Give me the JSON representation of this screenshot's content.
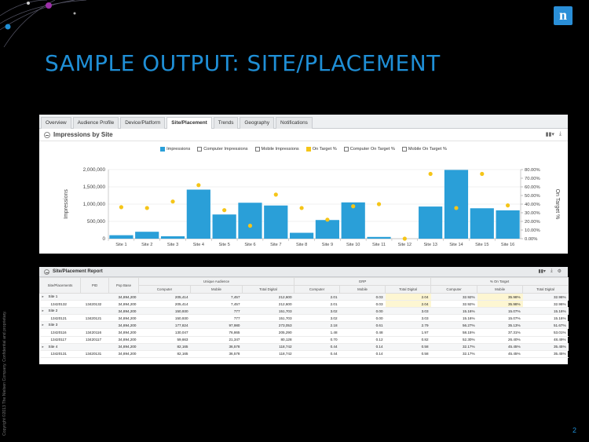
{
  "slide": {
    "title": "SAMPLE OUTPUT: SITE/PLACEMENT",
    "logo_letter": "n",
    "copyright": "Copyright ©2013 The Nielsen Company. Confidential and proprietary.",
    "page_number": "2",
    "colors": {
      "title": "#1f8fd6",
      "bar": "#2a9fd8",
      "dot": "#f5c518",
      "background": "#000000"
    }
  },
  "tabs": [
    {
      "label": "Overview",
      "active": false
    },
    {
      "label": "Audience Profile",
      "active": false
    },
    {
      "label": "Device/Platform",
      "active": false
    },
    {
      "label": "Site/Placement",
      "active": true
    },
    {
      "label": "Trends",
      "active": false
    },
    {
      "label": "Geography",
      "active": false
    },
    {
      "label": "Notifications",
      "active": false
    }
  ],
  "chart_panel": {
    "title": "Impressions by Site",
    "icons": [
      "bar-chart-icon",
      "download-icon"
    ]
  },
  "chart_data": {
    "type": "bar",
    "legend": [
      {
        "label": "Impressions",
        "kind": "filled",
        "color": "#2a9fd8"
      },
      {
        "label": "Computer Impressions",
        "kind": "outline"
      },
      {
        "label": "Mobile Impressions",
        "kind": "outline"
      },
      {
        "label": "On Target %",
        "kind": "filled",
        "color": "#f5c518"
      },
      {
        "label": "Computer On Target %",
        "kind": "outline"
      },
      {
        "label": "Mobile On Target %",
        "kind": "outline"
      }
    ],
    "categories": [
      "Site 1",
      "Site 2",
      "Site 3",
      "Site 4",
      "Site 5",
      "Site 6",
      "Site 7",
      "Site 8",
      "Site 9",
      "Site 10",
      "Site 11",
      "Site 12",
      "Site 13",
      "Site 14",
      "Site 15",
      "Site 16"
    ],
    "series": [
      {
        "name": "Impressions",
        "type": "bar",
        "axis": "left",
        "values": [
          100000,
          200000,
          70000,
          1420000,
          700000,
          1040000,
          960000,
          170000,
          540000,
          1050000,
          50000,
          0,
          930000,
          1990000,
          880000,
          820000
        ]
      },
      {
        "name": "On Target %",
        "type": "scatter",
        "axis": "right",
        "values": [
          36.5,
          35.5,
          43,
          62,
          33,
          15,
          51,
          35.5,
          22,
          37.5,
          40,
          0,
          75,
          35.5,
          75,
          38.5
        ]
      }
    ],
    "ylabel": "Impressions",
    "ylabel_right": "On Target %",
    "ylim": [
      0,
      2000000
    ],
    "ylim_right": [
      0,
      80
    ],
    "yticks": [
      "0",
      "500,000",
      "1,000,000",
      "1,500,000",
      "2,000,000"
    ],
    "yticks_right": [
      "0.00%",
      "10.00%",
      "20.00%",
      "30.00%",
      "40.00%",
      "50.00%",
      "60.00%",
      "70.00%",
      "80.00%"
    ],
    "grid": true
  },
  "report": {
    "title": "Site/Placement Report",
    "icons": [
      "bar-chart-icon",
      "download-icon",
      "settings-icon"
    ],
    "group_headers": [
      "Unique Audience",
      "GRP",
      "% On Target"
    ],
    "columns": [
      "Site/Placements",
      "PID",
      "Pop Base",
      "Computer",
      "Mobile",
      "Total Digital",
      "Computer",
      "Mobile",
      "Total Digital",
      "Computer",
      "Mobile",
      "Total Digital"
    ],
    "rows": [
      {
        "group": true,
        "cells": [
          "Site 1",
          "",
          "34,894,200",
          "205,414",
          "7,457",
          "212,600",
          "2.01",
          "0.03",
          "2.04",
          "32.92%",
          "35.98%",
          "32.96%"
        ]
      },
      {
        "group": false,
        "cells": [
          "13420132",
          "13420132",
          "34,894,200",
          "205,414",
          "7,457",
          "212,600",
          "2.01",
          "0.03",
          "2.04",
          "32.92%",
          "35.98%",
          "32.96%"
        ]
      },
      {
        "group": true,
        "cells": [
          "Site 2",
          "",
          "34,894,200",
          "150,930",
          "777",
          "151,703",
          "3.02",
          "0.00",
          "3.03",
          "15.16%",
          "15.07%",
          "15.16%"
        ]
      },
      {
        "group": false,
        "cells": [
          "13420121",
          "13420121",
          "34,894,200",
          "150,930",
          "777",
          "151,703",
          "3.02",
          "0.00",
          "3.03",
          "15.16%",
          "15.07%",
          "15.16%"
        ]
      },
      {
        "group": true,
        "cells": [
          "Site 3",
          "",
          "34,894,200",
          "177,824",
          "97,980",
          "273,053",
          "2.18",
          "0.61",
          "2.79",
          "56.27%",
          "35.13%",
          "51.67%"
        ]
      },
      {
        "group": false,
        "cells": [
          "13420116",
          "13420116",
          "34,894,200",
          "130,047",
          "76,865",
          "205,290",
          "1.48",
          "0.48",
          "1.97",
          "58.15%",
          "37.31%",
          "53.01%"
        ]
      },
      {
        "group": false,
        "cells": [
          "13420117",
          "13420117",
          "34,894,200",
          "59,663",
          "21,347",
          "80,128",
          "0.70",
          "0.12",
          "0.82",
          "52.30%",
          "26.40%",
          "48.49%"
        ]
      },
      {
        "group": true,
        "cells": [
          "Site 4",
          "",
          "34,894,200",
          "82,165",
          "36,578",
          "118,742",
          "0.44",
          "0.14",
          "0.58",
          "32.17%",
          "45.45%",
          "35.45%"
        ]
      },
      {
        "group": false,
        "cells": [
          "13420131",
          "13420131",
          "34,894,200",
          "82,165",
          "36,578",
          "118,742",
          "0.44",
          "0.14",
          "0.58",
          "32.17%",
          "45.45%",
          "35.45%"
        ]
      }
    ]
  }
}
